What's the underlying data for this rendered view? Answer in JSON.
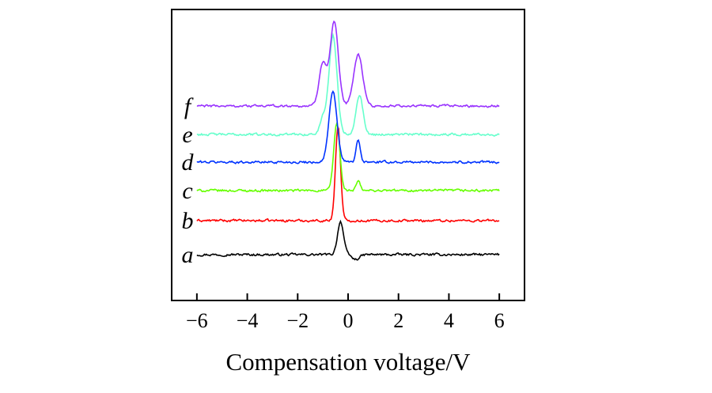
{
  "chart_data": {
    "type": "line",
    "xlabel": "Compensation voltage/V",
    "ylabel": "",
    "xlim": [
      -7,
      7
    ],
    "xticks": [
      -6,
      -4,
      -2,
      0,
      2,
      4,
      6
    ],
    "xtick_labels": [
      "−6",
      "−4",
      "−2",
      "0",
      "2",
      "4",
      "6"
    ],
    "grid": false,
    "series": [
      {
        "name": "a",
        "color": "#000000",
        "baseline": 0,
        "noise": 0.25,
        "peaks": [
          {
            "x": -0.3,
            "height": 4.2,
            "width": 0.12
          },
          {
            "x": 0.3,
            "height": -0.6,
            "width": 0.15
          }
        ]
      },
      {
        "name": "b",
        "color": "#ff0000",
        "baseline": 4.3,
        "noise": 0.25,
        "peaks": [
          {
            "x": -0.4,
            "height": 12.0,
            "width": 0.1
          }
        ]
      },
      {
        "name": "c",
        "color": "#66ff00",
        "baseline": 8.1,
        "noise": 0.25,
        "peaks": [
          {
            "x": -0.45,
            "height": 8.5,
            "width": 0.12
          },
          {
            "x": 0.4,
            "height": 1.2,
            "width": 0.08
          }
        ]
      },
      {
        "name": "d",
        "color": "#0033ff",
        "baseline": 11.7,
        "noise": 0.25,
        "peaks": [
          {
            "x": -0.6,
            "height": 8.8,
            "width": 0.16
          },
          {
            "x": 0.4,
            "height": 2.8,
            "width": 0.08
          }
        ]
      },
      {
        "name": "e",
        "color": "#66ffcc",
        "baseline": 15.2,
        "noise": 0.25,
        "peaks": [
          {
            "x": -0.6,
            "height": 12.5,
            "width": 0.16
          },
          {
            "x": 0.45,
            "height": 5.0,
            "width": 0.14
          },
          {
            "x": -1.0,
            "height": 2.0,
            "width": 0.12
          }
        ]
      },
      {
        "name": "f",
        "color": "#9933ff",
        "baseline": 18.8,
        "noise": 0.25,
        "peaks": [
          {
            "x": -0.55,
            "height": 10.5,
            "width": 0.16
          },
          {
            "x": -1.0,
            "height": 5.5,
            "width": 0.15
          },
          {
            "x": 0.4,
            "height": 6.5,
            "width": 0.18
          }
        ]
      }
    ]
  }
}
